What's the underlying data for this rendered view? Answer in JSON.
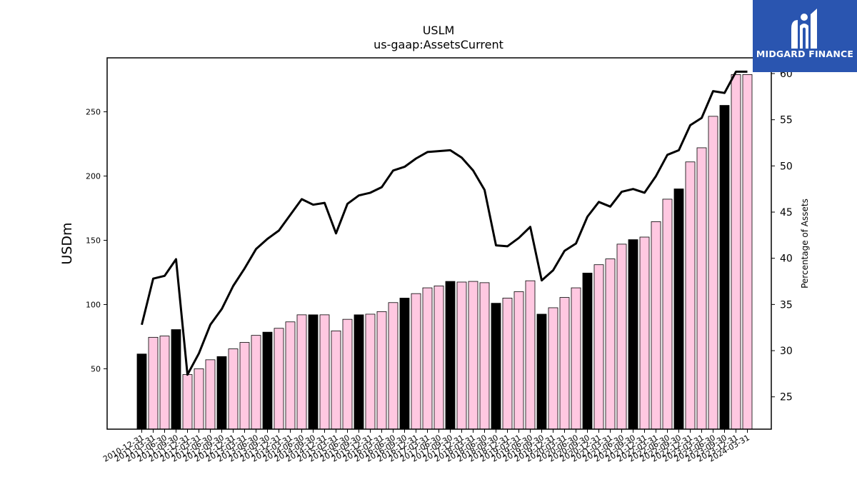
{
  "chart_data": {
    "type": "bar",
    "title": "USLM",
    "subtitle": "us-gaap:AssetsCurrent",
    "ylabel": "USDm",
    "ylabel_right": "Percentage of Assets",
    "ylim": [
      3,
      292
    ],
    "ylim_right": [
      21.5,
      61.7
    ],
    "yticks": [
      50,
      100,
      150,
      200,
      250
    ],
    "yticks_right": [
      25,
      30,
      35,
      40,
      45,
      50,
      55,
      60
    ],
    "grid": false,
    "categories": [
      "2010-12-31",
      "2011-03-31",
      "2011-06-30",
      "2011-09-30",
      "2011-12-31",
      "2012-03-31",
      "2012-06-30",
      "2012-09-30",
      "2012-12-31",
      "2013-03-31",
      "2013-06-30",
      "2013-09-30",
      "2013-12-31",
      "2014-03-31",
      "2014-06-30",
      "2014-09-30",
      "2014-12-31",
      "2015-03-31",
      "2015-06-30",
      "2015-09-30",
      "2015-12-31",
      "2016-03-31",
      "2016-06-30",
      "2016-09-30",
      "2016-12-31",
      "2017-03-31",
      "2017-06-30",
      "2017-09-30",
      "2017-12-31",
      "2018-03-31",
      "2018-06-30",
      "2018-09-30",
      "2018-12-31",
      "2019-03-31",
      "2019-06-30",
      "2019-09-30",
      "2019-12-31",
      "2020-03-31",
      "2020-06-30",
      "2020-09-30",
      "2020-12-31",
      "2021-03-31",
      "2021-06-30",
      "2021-09-30",
      "2021-12-31",
      "2022-03-31",
      "2022-06-30",
      "2022-09-30",
      "2022-12-31",
      "2023-03-31",
      "2023-06-30",
      "2023-09-30",
      "2023-12-31",
      "2024-03-31"
    ],
    "tick_labels": [
      "2010-12-31",
      "2011-03-31",
      "2011-06-30",
      "2011-09-30",
      "2011-12-31",
      "2012-03-31",
      "2012-06-30",
      "2012-09-30",
      "2012-12-31",
      "2013-03-31",
      "2013-06-30",
      "2013-09-30",
      "2013-12-31",
      "2014-03-31",
      "2014-06-30",
      "2014-09-30",
      "2014-12-31",
      "2015-03-31",
      "2015-06-30",
      "2015-09-30",
      "2015-12-31",
      "2016-03-31",
      "2016-06-30",
      "2016-09-30",
      "2016-12-31",
      "2017-03-31",
      "2017-06-30",
      "2017-09-30",
      "2017-12-31",
      "2018-03-31",
      "2018-06-30",
      "2018-09-30",
      "2018-12-31",
      "2019-03-31",
      "2019-06-30",
      "2019-09-30",
      "2019-12-31",
      "2020-03-31",
      "2020-06-30",
      "2020-09-30",
      "2020-12-31",
      "2021-03-31",
      "2021-06-30",
      "2021-09-30",
      "2021-12-31",
      "2022-03-31",
      "2022-06-30",
      "2022-09-30",
      "2022-12-31",
      "2023-03-31",
      "2023-06-30",
      "2023-09-30",
      "2023-12-31",
      "2024-03-31"
    ],
    "series": [
      {
        "type": "bar",
        "axis": "left",
        "values": [
          61.5,
          74.5,
          75.5,
          80.5,
          45.5,
          50.0,
          57.0,
          59.5,
          65.5,
          70.5,
          76.0,
          78.5,
          81.5,
          86.5,
          92.0,
          92.0,
          92.0,
          79.5,
          88.5,
          92.0,
          92.5,
          94.5,
          101.5,
          105.0,
          108.5,
          113.0,
          114.5,
          118.0,
          117.5,
          118.0,
          117.0,
          101.0,
          105.0,
          110.0,
          118.5,
          92.5,
          97.5,
          105.5,
          113.0,
          124.5,
          131.0,
          135.5,
          147.0,
          150.5,
          152.5,
          164.5,
          182.0,
          190.0,
          211.0,
          222.0,
          246.5,
          255.0,
          279.0,
          279.0
        ],
        "highlight_indices": [
          0,
          3,
          7,
          11,
          15,
          19,
          23,
          27,
          31,
          35,
          39,
          43,
          47,
          51
        ],
        "colors": {
          "normal": "#ffc8e1",
          "highlight": "#000000",
          "edge": "#000000"
        }
      },
      {
        "type": "line",
        "axis": "right",
        "values": [
          32.8,
          37.8,
          38.1,
          39.9,
          27.4,
          29.7,
          32.8,
          34.5,
          37.0,
          38.9,
          41.0,
          42.1,
          43.0,
          44.7,
          46.4,
          45.8,
          46.0,
          42.7,
          45.9,
          46.8,
          47.1,
          47.7,
          49.5,
          49.9,
          50.8,
          51.5,
          51.6,
          51.7,
          50.9,
          49.5,
          47.4,
          41.4,
          41.3,
          42.2,
          43.4,
          37.6,
          38.7,
          40.8,
          41.6,
          44.5,
          46.1,
          45.6,
          47.2,
          47.5,
          47.1,
          48.9,
          51.2,
          51.7,
          54.4,
          55.2,
          58.1,
          57.9,
          60.2,
          60.2
        ],
        "color": "#000000"
      }
    ]
  },
  "logo": {
    "brand": "MIDGARD FINANCE",
    "color": "#2a55b0"
  }
}
